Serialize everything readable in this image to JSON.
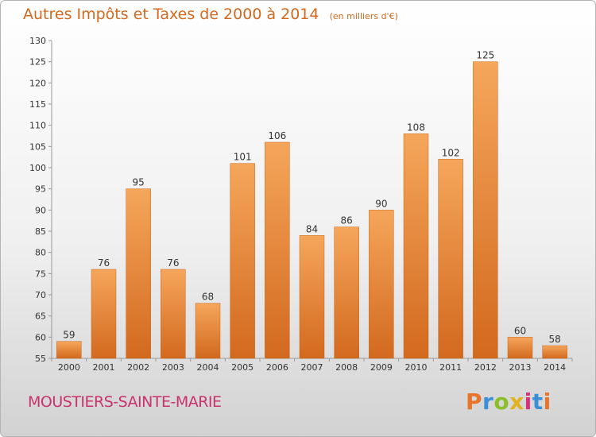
{
  "header": {
    "title": "Autres Impôts et Taxes de 2000 à 2014",
    "unit": "(en milliers d'€)"
  },
  "footer": {
    "commune": "MOUSTIERS-SAINTE-MARIE",
    "logo": "Proxiti"
  },
  "colors": {
    "bar_top": "#f5a65b",
    "bar_bottom": "#d2691e",
    "title": "#d2691e",
    "commune": "#c8326e"
  },
  "chart_data": {
    "type": "bar",
    "title": "Autres Impôts et Taxes de 2000 à 2014",
    "subtitle": "(en milliers d'€)",
    "xlabel": "",
    "ylabel": "",
    "categories": [
      "2000",
      "2001",
      "2002",
      "2003",
      "2004",
      "2005",
      "2006",
      "2007",
      "2008",
      "2009",
      "2010",
      "2011",
      "2012",
      "2013",
      "2014"
    ],
    "values": [
      59,
      76,
      95,
      76,
      68,
      101,
      106,
      84,
      86,
      90,
      108,
      102,
      125,
      60,
      58
    ],
    "ylim": [
      55,
      130
    ],
    "yticks": [
      55,
      60,
      65,
      70,
      75,
      80,
      85,
      90,
      95,
      100,
      105,
      110,
      115,
      120,
      125,
      130
    ],
    "grid": false,
    "legend": "none"
  }
}
